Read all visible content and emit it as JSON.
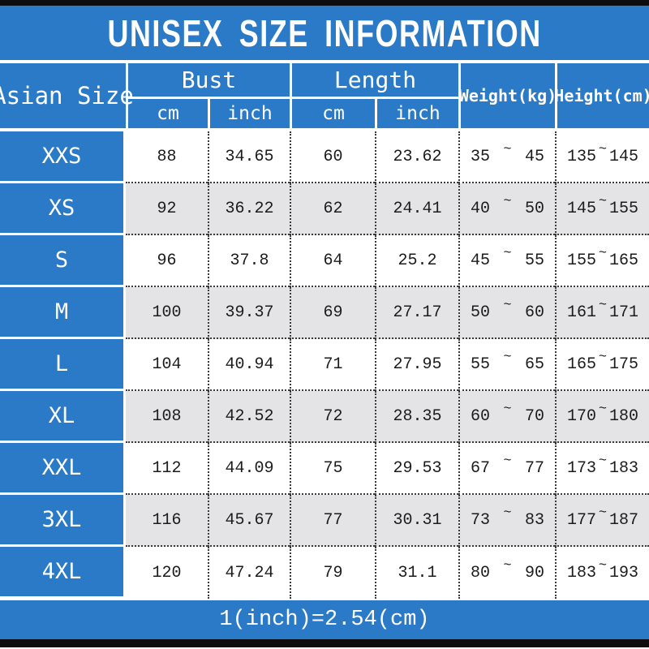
{
  "title": "UNISEX SIZE INFORMATION",
  "header": {
    "asian_size": "Asian Size",
    "bust": "Bust",
    "length": "Length",
    "weight": "Weight(kg)",
    "height": "Height(cm)",
    "bust_cm": "cm",
    "bust_inch": "inch",
    "length_cm": "cm",
    "length_inch": "inch"
  },
  "tilde": "~",
  "rows": [
    {
      "size": "XXS",
      "bust_cm": "88",
      "bust_inch": "34.65",
      "length_cm": "60",
      "length_inch": "23.62",
      "weight_min": "35",
      "weight_max": "45",
      "height_min": "135",
      "height_max": "145"
    },
    {
      "size": "XS",
      "bust_cm": "92",
      "bust_inch": "36.22",
      "length_cm": "62",
      "length_inch": "24.41",
      "weight_min": "40",
      "weight_max": "50",
      "height_min": "145",
      "height_max": "155"
    },
    {
      "size": "S",
      "bust_cm": "96",
      "bust_inch": "37.8",
      "length_cm": "64",
      "length_inch": "25.2",
      "weight_min": "45",
      "weight_max": "55",
      "height_min": "155",
      "height_max": "165"
    },
    {
      "size": "M",
      "bust_cm": "100",
      "bust_inch": "39.37",
      "length_cm": "69",
      "length_inch": "27.17",
      "weight_min": "50",
      "weight_max": "60",
      "height_min": "161",
      "height_max": "171"
    },
    {
      "size": "L",
      "bust_cm": "104",
      "bust_inch": "40.94",
      "length_cm": "71",
      "length_inch": "27.95",
      "weight_min": "55",
      "weight_max": "65",
      "height_min": "165",
      "height_max": "175"
    },
    {
      "size": "XL",
      "bust_cm": "108",
      "bust_inch": "42.52",
      "length_cm": "72",
      "length_inch": "28.35",
      "weight_min": "60",
      "weight_max": "70",
      "height_min": "170",
      "height_max": "180"
    },
    {
      "size": "XXL",
      "bust_cm": "112",
      "bust_inch": "44.09",
      "length_cm": "75",
      "length_inch": "29.53",
      "weight_min": "67",
      "weight_max": "77",
      "height_min": "173",
      "height_max": "183"
    },
    {
      "size": "3XL",
      "bust_cm": "116",
      "bust_inch": "45.67",
      "length_cm": "77",
      "length_inch": "30.31",
      "weight_min": "73",
      "weight_max": "83",
      "height_min": "177",
      "height_max": "187"
    },
    {
      "size": "4XL",
      "bust_cm": "120",
      "bust_inch": "47.24",
      "length_cm": "79",
      "length_inch": "31.1",
      "weight_min": "80",
      "weight_max": "90",
      "height_min": "183",
      "height_max": "193"
    }
  ],
  "footer_note": "1(inch)=2.54(cm)",
  "colors": {
    "blue": "#2b7ac7",
    "alt_row": "#e4e4e6",
    "strip_black": "#0d0d0d",
    "text": "#1c1c1c",
    "white": "#ffffff"
  }
}
